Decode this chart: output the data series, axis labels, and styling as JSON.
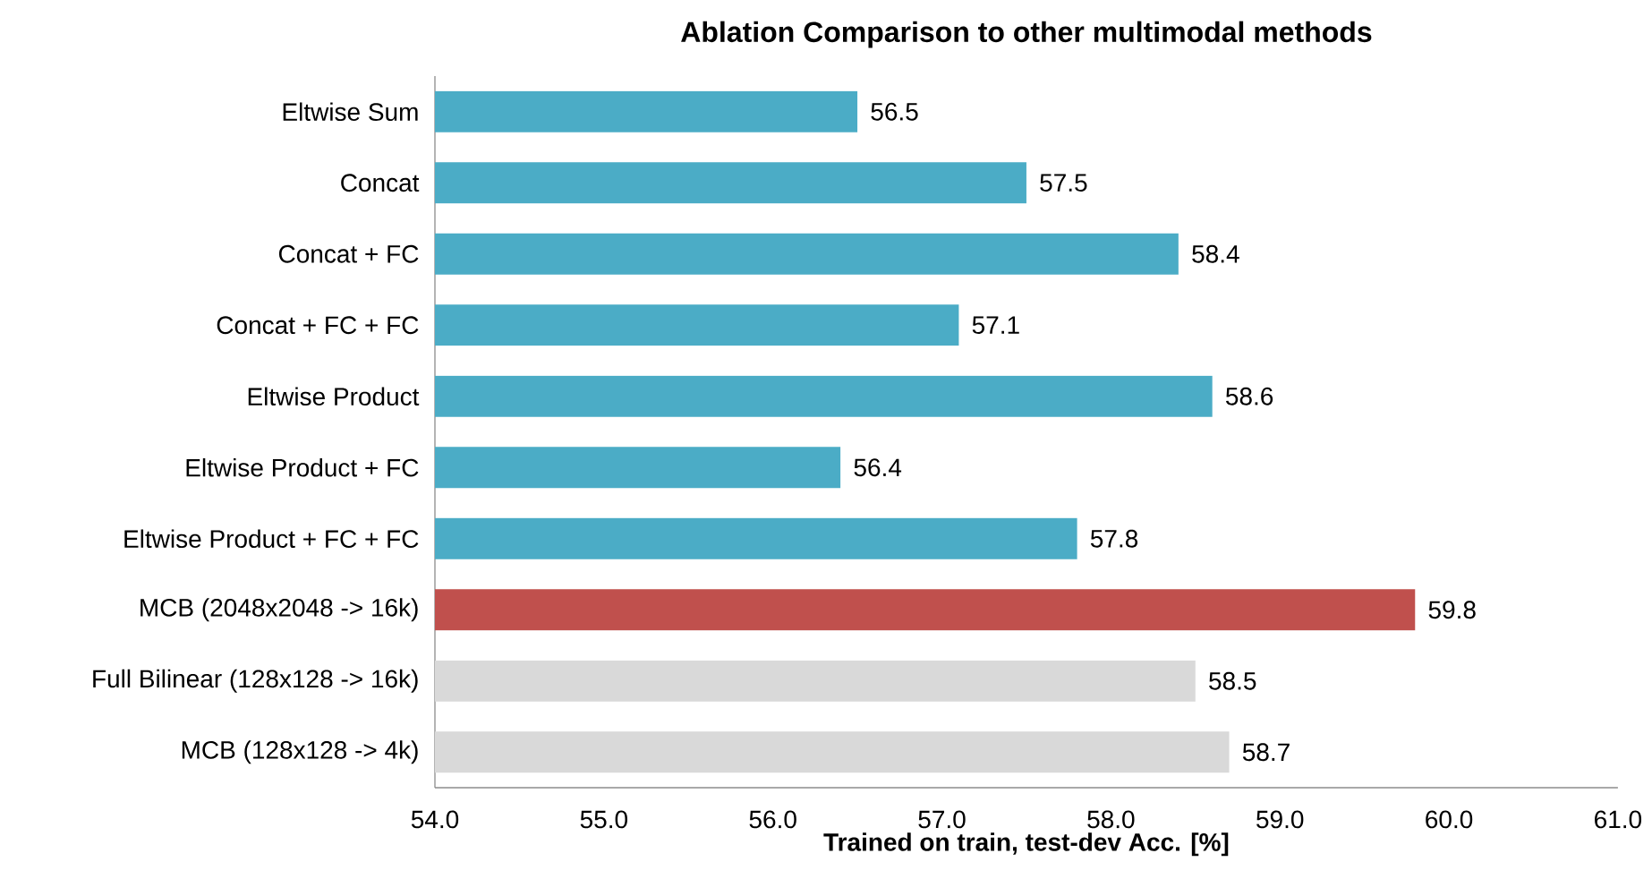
{
  "chart_data": {
    "type": "bar",
    "orientation": "horizontal",
    "title": "Ablation Comparison to other multimodal methods",
    "xlabel": "Trained on train, test-dev Acc. [%]",
    "categories": [
      "Eltwise Sum",
      "Concat",
      "Concat + FC",
      "Concat + FC + FC",
      "Eltwise Product",
      "Eltwise Product + FC",
      "Eltwise Product + FC + FC",
      "MCB (2048x2048 -> 16k)",
      "Full Bilinear (128x128 -> 16k)",
      "MCB (128x128 -> 4k)"
    ],
    "values": [
      56.5,
      57.5,
      58.4,
      57.1,
      58.6,
      56.4,
      57.8,
      59.8,
      58.5,
      58.7
    ],
    "colors": [
      "#4bacc6",
      "#4bacc6",
      "#4bacc6",
      "#4bacc6",
      "#4bacc6",
      "#4bacc6",
      "#4bacc6",
      "#c0504d",
      "#d9d9d9",
      "#d9d9d9"
    ],
    "xlim": [
      54,
      61
    ],
    "xticks": [
      {
        "value": 54,
        "label": "54.0"
      },
      {
        "value": 55,
        "label": "55.0"
      },
      {
        "value": 56,
        "label": "56.0"
      },
      {
        "value": 57,
        "label": "57.0"
      },
      {
        "value": 58,
        "label": "58.0"
      },
      {
        "value": 59,
        "label": "59.0"
      },
      {
        "value": 60,
        "label": "60.0"
      },
      {
        "value": 61,
        "label": "61.0"
      }
    ],
    "data_labels": true
  }
}
